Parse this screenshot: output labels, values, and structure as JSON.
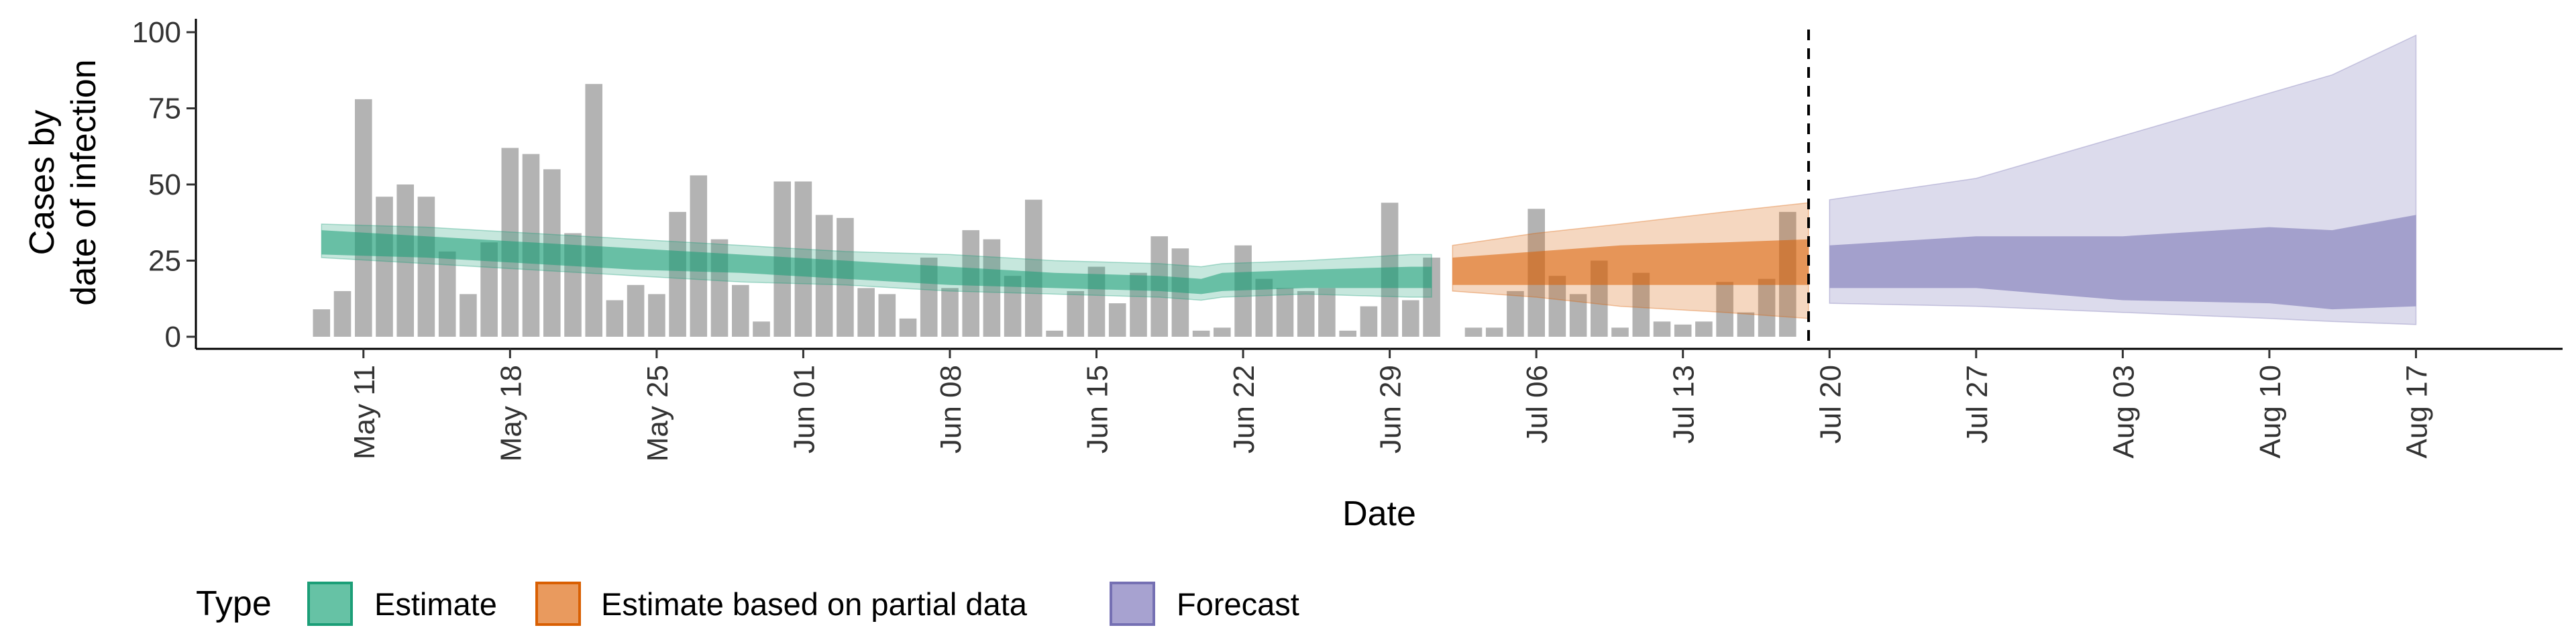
{
  "chart_data": {
    "type": "bar",
    "title": "",
    "xlabel": "Date",
    "ylabel_lines": [
      "Cases by",
      "date of infection"
    ],
    "ylim": [
      0,
      100
    ],
    "y_ticks": [
      "0",
      "25",
      "50",
      "75",
      "100"
    ],
    "x_tick_labels": [
      "May 11",
      "May 18",
      "May 25",
      "Jun 01",
      "Jun 08",
      "Jun 15",
      "Jun 22",
      "Jun 29",
      "Jul 06",
      "Jul 13",
      "Jul 20",
      "Jul 27",
      "Aug 03",
      "Aug 10",
      "Aug 17"
    ],
    "x_ticks": [
      "2020-05-11",
      "2020-05-18",
      "2020-05-25",
      "2020-06-01",
      "2020-06-08",
      "2020-06-15",
      "2020-06-22",
      "2020-06-29",
      "2020-07-06",
      "2020-07-13",
      "2020-07-20",
      "2020-07-27",
      "2020-08-03",
      "2020-08-10",
      "2020-08-17"
    ],
    "xlim": [
      "2020-05-03",
      "2020-08-24"
    ],
    "vline_date": "2020-07-19",
    "grid": false,
    "legend": {
      "title": "Type",
      "position": "bottom",
      "entries": [
        {
          "label": "Estimate",
          "fill": "#66c2a5",
          "stroke": "#1b9e77"
        },
        {
          "label": "Estimate based on partial data",
          "fill": "#e99a5e",
          "stroke": "#d95f02"
        },
        {
          "label": "Forecast",
          "fill": "#a7a2d0",
          "stroke": "#7570b3"
        }
      ]
    },
    "bars": {
      "start_date": "2020-05-09",
      "color": "#b3b3b3",
      "values": [
        9,
        15,
        78,
        46,
        50,
        46,
        28,
        14,
        31,
        62,
        60,
        55,
        34,
        83,
        12,
        17,
        14,
        41,
        53,
        32,
        17,
        5,
        51,
        51,
        40,
        39,
        16,
        14,
        6,
        26,
        16,
        35,
        32,
        20,
        45,
        2,
        15,
        23,
        11,
        21,
        33,
        29,
        2,
        3,
        30,
        19,
        16,
        15,
        16,
        2,
        10,
        44,
        12,
        26,
        0,
        3,
        3,
        15,
        42,
        20,
        14,
        25,
        3,
        21,
        5,
        4,
        5,
        18,
        8,
        19,
        41
      ]
    },
    "series": [
      {
        "name": "Estimate",
        "color": "#1b9e77",
        "points": [
          [
            "2020-05-09",
            31,
            26,
            27,
            35,
            37
          ],
          [
            "2020-05-14",
            29,
            24,
            26,
            33,
            36
          ],
          [
            "2020-05-19",
            27,
            22,
            24,
            31,
            34
          ],
          [
            "2020-05-24",
            25,
            20,
            22,
            29,
            32
          ],
          [
            "2020-05-29",
            23,
            18,
            21,
            27,
            30
          ],
          [
            "2020-06-03",
            22,
            17,
            19,
            25,
            28
          ],
          [
            "2020-06-08",
            20,
            15,
            17,
            23,
            27
          ],
          [
            "2020-06-13",
            18,
            14,
            16,
            21,
            25
          ],
          [
            "2020-06-18",
            17,
            13,
            15,
            20,
            24
          ],
          [
            "2020-06-20",
            16,
            12,
            14,
            19,
            23
          ],
          [
            "2020-06-21",
            18,
            13,
            15,
            21,
            24
          ],
          [
            "2020-06-25",
            19,
            14,
            16,
            22,
            25
          ],
          [
            "2020-06-30",
            19,
            13,
            16,
            23,
            27
          ],
          [
            "2020-07-01",
            19,
            13,
            16,
            23,
            27
          ]
        ]
      },
      {
        "name": "Estimate based on partial data",
        "color": "#d95f02",
        "points": [
          [
            "2020-07-02",
            21,
            15,
            17,
            26,
            30
          ],
          [
            "2020-07-06",
            22,
            13,
            17,
            28,
            34
          ],
          [
            "2020-07-10",
            23,
            10,
            17,
            30,
            37
          ],
          [
            "2020-07-15",
            24,
            8,
            17,
            31,
            41
          ],
          [
            "2020-07-19",
            24,
            6,
            17,
            32,
            44
          ]
        ]
      },
      {
        "name": "Forecast",
        "color": "#7570b3",
        "points": [
          [
            "2020-07-20",
            22,
            11,
            16,
            30,
            45
          ],
          [
            "2020-07-27",
            22,
            10,
            16,
            33,
            52
          ],
          [
            "2020-08-03",
            22,
            8,
            12,
            33,
            66
          ],
          [
            "2020-08-10",
            22,
            6,
            11,
            36,
            80
          ],
          [
            "2020-08-13",
            22,
            5,
            9,
            35,
            86
          ],
          [
            "2020-08-17",
            22,
            4,
            10,
            40,
            99
          ]
        ]
      }
    ]
  }
}
